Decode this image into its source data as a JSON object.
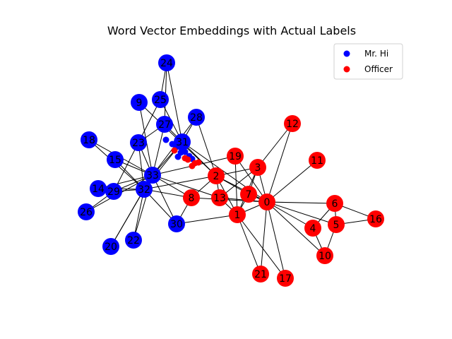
{
  "title": "Word Vector Embeddings with Actual Labels",
  "colors": {
    "mr_hi": "#0000ff",
    "officer": "#ff0000",
    "edge": "#000000"
  },
  "legend": [
    {
      "label": "Mr. Hi",
      "color": "#0000ff"
    },
    {
      "label": "Officer",
      "color": "#ff0000"
    }
  ],
  "nodes": [
    {
      "id": "0",
      "group": "officer"
    },
    {
      "id": "1",
      "group": "officer"
    },
    {
      "id": "2",
      "group": "officer"
    },
    {
      "id": "3",
      "group": "officer"
    },
    {
      "id": "4",
      "group": "officer"
    },
    {
      "id": "5",
      "group": "officer"
    },
    {
      "id": "6",
      "group": "officer"
    },
    {
      "id": "7",
      "group": "officer"
    },
    {
      "id": "8",
      "group": "officer"
    },
    {
      "id": "9",
      "group": "mr_hi"
    },
    {
      "id": "10",
      "group": "officer"
    },
    {
      "id": "11",
      "group": "officer"
    },
    {
      "id": "12",
      "group": "officer"
    },
    {
      "id": "13",
      "group": "officer"
    },
    {
      "id": "14",
      "group": "mr_hi"
    },
    {
      "id": "15",
      "group": "mr_hi"
    },
    {
      "id": "16",
      "group": "officer"
    },
    {
      "id": "17",
      "group": "officer"
    },
    {
      "id": "18",
      "group": "mr_hi"
    },
    {
      "id": "19",
      "group": "officer"
    },
    {
      "id": "20",
      "group": "mr_hi"
    },
    {
      "id": "21",
      "group": "officer"
    },
    {
      "id": "22",
      "group": "mr_hi"
    },
    {
      "id": "23",
      "group": "mr_hi"
    },
    {
      "id": "24",
      "group": "mr_hi"
    },
    {
      "id": "25",
      "group": "mr_hi"
    },
    {
      "id": "26",
      "group": "mr_hi"
    },
    {
      "id": "27",
      "group": "mr_hi"
    },
    {
      "id": "28",
      "group": "mr_hi"
    },
    {
      "id": "29",
      "group": "mr_hi"
    },
    {
      "id": "30",
      "group": "mr_hi"
    },
    {
      "id": "31",
      "group": "mr_hi"
    },
    {
      "id": "32",
      "group": "mr_hi"
    },
    {
      "id": "33",
      "group": "mr_hi"
    }
  ],
  "edges": [
    [
      "0",
      "1"
    ],
    [
      "0",
      "2"
    ],
    [
      "0",
      "3"
    ],
    [
      "0",
      "4"
    ],
    [
      "0",
      "5"
    ],
    [
      "0",
      "6"
    ],
    [
      "0",
      "7"
    ],
    [
      "0",
      "8"
    ],
    [
      "0",
      "10"
    ],
    [
      "0",
      "11"
    ],
    [
      "0",
      "12"
    ],
    [
      "0",
      "13"
    ],
    [
      "0",
      "17"
    ],
    [
      "0",
      "19"
    ],
    [
      "0",
      "21"
    ],
    [
      "0",
      "31"
    ],
    [
      "1",
      "2"
    ],
    [
      "1",
      "3"
    ],
    [
      "1",
      "7"
    ],
    [
      "1",
      "13"
    ],
    [
      "1",
      "17"
    ],
    [
      "1",
      "19"
    ],
    [
      "1",
      "21"
    ],
    [
      "1",
      "30"
    ],
    [
      "2",
      "3"
    ],
    [
      "2",
      "7"
    ],
    [
      "2",
      "8"
    ],
    [
      "2",
      "9"
    ],
    [
      "2",
      "13"
    ],
    [
      "2",
      "27"
    ],
    [
      "2",
      "28"
    ],
    [
      "2",
      "32"
    ],
    [
      "3",
      "7"
    ],
    [
      "3",
      "12"
    ],
    [
      "3",
      "13"
    ],
    [
      "4",
      "6"
    ],
    [
      "4",
      "10"
    ],
    [
      "5",
      "6"
    ],
    [
      "5",
      "10"
    ],
    [
      "5",
      "16"
    ],
    [
      "6",
      "16"
    ],
    [
      "8",
      "30"
    ],
    [
      "8",
      "32"
    ],
    [
      "8",
      "33"
    ],
    [
      "9",
      "33"
    ],
    [
      "13",
      "33"
    ],
    [
      "14",
      "32"
    ],
    [
      "14",
      "33"
    ],
    [
      "15",
      "32"
    ],
    [
      "15",
      "33"
    ],
    [
      "18",
      "32"
    ],
    [
      "18",
      "33"
    ],
    [
      "19",
      "33"
    ],
    [
      "20",
      "32"
    ],
    [
      "20",
      "33"
    ],
    [
      "22",
      "32"
    ],
    [
      "22",
      "33"
    ],
    [
      "23",
      "25"
    ],
    [
      "23",
      "27"
    ],
    [
      "23",
      "29"
    ],
    [
      "23",
      "32"
    ],
    [
      "23",
      "33"
    ],
    [
      "24",
      "25"
    ],
    [
      "24",
      "27"
    ],
    [
      "24",
      "31"
    ],
    [
      "25",
      "31"
    ],
    [
      "26",
      "29"
    ],
    [
      "26",
      "33"
    ],
    [
      "27",
      "33"
    ],
    [
      "28",
      "31"
    ],
    [
      "28",
      "33"
    ],
    [
      "29",
      "32"
    ],
    [
      "29",
      "33"
    ],
    [
      "30",
      "32"
    ],
    [
      "30",
      "33"
    ],
    [
      "31",
      "32"
    ],
    [
      "31",
      "33"
    ],
    [
      "32",
      "33"
    ]
  ],
  "embedding_points": [
    {
      "group": "mr_hi"
    },
    {
      "group": "mr_hi"
    },
    {
      "group": "mr_hi"
    },
    {
      "group": "mr_hi"
    },
    {
      "group": "mr_hi"
    },
    {
      "group": "mr_hi"
    },
    {
      "group": "mr_hi"
    },
    {
      "group": "mr_hi"
    },
    {
      "group": "officer"
    },
    {
      "group": "officer"
    },
    {
      "group": "officer"
    },
    {
      "group": "officer"
    },
    {
      "group": "officer"
    },
    {
      "group": "officer"
    }
  ]
}
